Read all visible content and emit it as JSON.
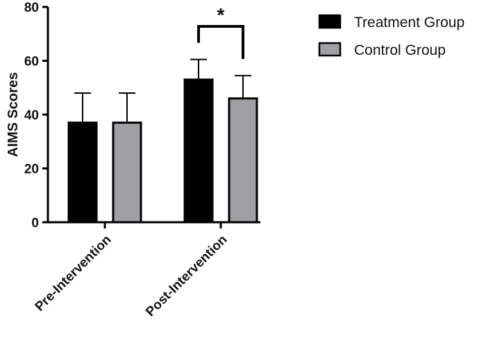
{
  "chart_data": {
    "type": "bar",
    "title": "",
    "xlabel": "",
    "ylabel": "AIMS Scores",
    "ylim": [
      0,
      80
    ],
    "yticks": [
      0,
      20,
      40,
      60,
      80
    ],
    "categories": [
      "Pre-Intervention",
      "Post-Intervention"
    ],
    "series": [
      {
        "name": "Treatment Group",
        "values": [
          37,
          53
        ],
        "errors": [
          11,
          7.5
        ],
        "color": "#000000"
      },
      {
        "name": "Control Group",
        "values": [
          37,
          46
        ],
        "errors": [
          11,
          8.5
        ],
        "color": "#a0a0a4"
      }
    ],
    "error_bars": "upper only",
    "legend_position": "top-right",
    "grid": false,
    "annotations": [
      {
        "text": "*",
        "category": "Post-Intervention",
        "type": "significance-bracket"
      }
    ]
  }
}
